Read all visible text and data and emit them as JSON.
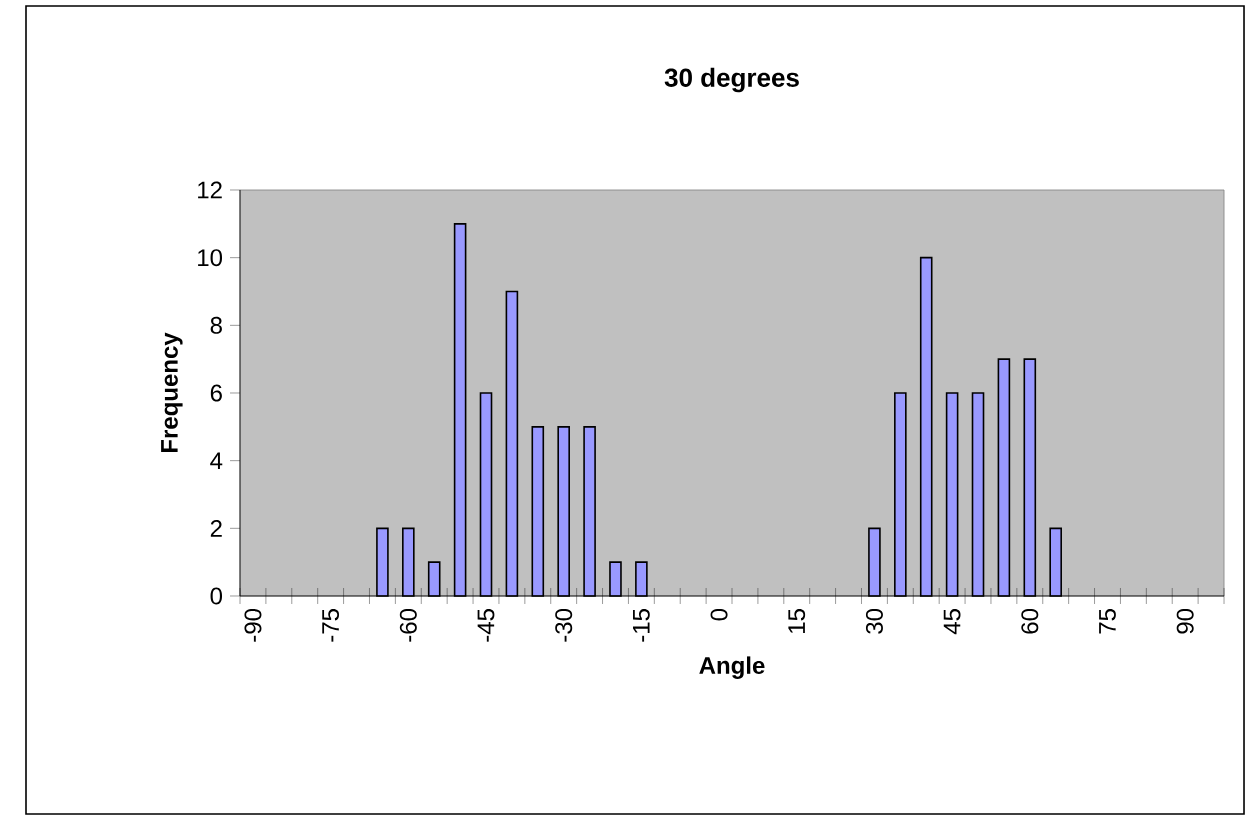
{
  "chart_data": {
    "type": "bar",
    "title": "30 degrees",
    "xlabel": "Angle",
    "ylabel": "Frequency",
    "categories": [
      "-90",
      null,
      null,
      "-75",
      null,
      null,
      "-60",
      null,
      null,
      "-45",
      null,
      null,
      "-30",
      null,
      null,
      "-15",
      null,
      null,
      "0",
      null,
      null,
      "15",
      null,
      null,
      "30",
      null,
      null,
      "45",
      null,
      null,
      "60",
      null,
      null,
      "75",
      null,
      null,
      "90",
      null
    ],
    "values": [
      null,
      null,
      null,
      null,
      null,
      2,
      2,
      1,
      11,
      6,
      9,
      5,
      5,
      5,
      1,
      1,
      null,
      null,
      null,
      null,
      null,
      null,
      null,
      null,
      2,
      6,
      10,
      6,
      6,
      7,
      7,
      2,
      null,
      null,
      null,
      null,
      null,
      null
    ],
    "color": "#9999ff",
    "ylim": [
      0,
      12
    ],
    "yticks": [
      0,
      2,
      4,
      6,
      8,
      10,
      12
    ],
    "grid": false
  }
}
